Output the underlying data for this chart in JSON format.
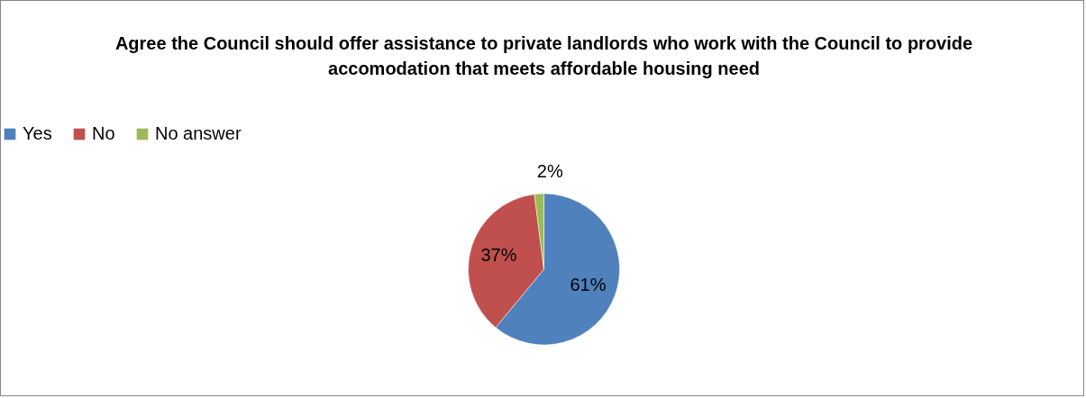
{
  "chart_data": {
    "type": "pie",
    "title": "Agree the Council should offer assistance to private landlords who work with the Council to provide accomodation that meets affordable housing need",
    "categories": [
      "Yes",
      "No",
      "No answer"
    ],
    "values": [
      61,
      37,
      2
    ],
    "colors": [
      "#4f81bd",
      "#c0504d",
      "#9bbb59"
    ],
    "value_labels": [
      "61%",
      "37%",
      "2%"
    ],
    "legend": "top"
  }
}
